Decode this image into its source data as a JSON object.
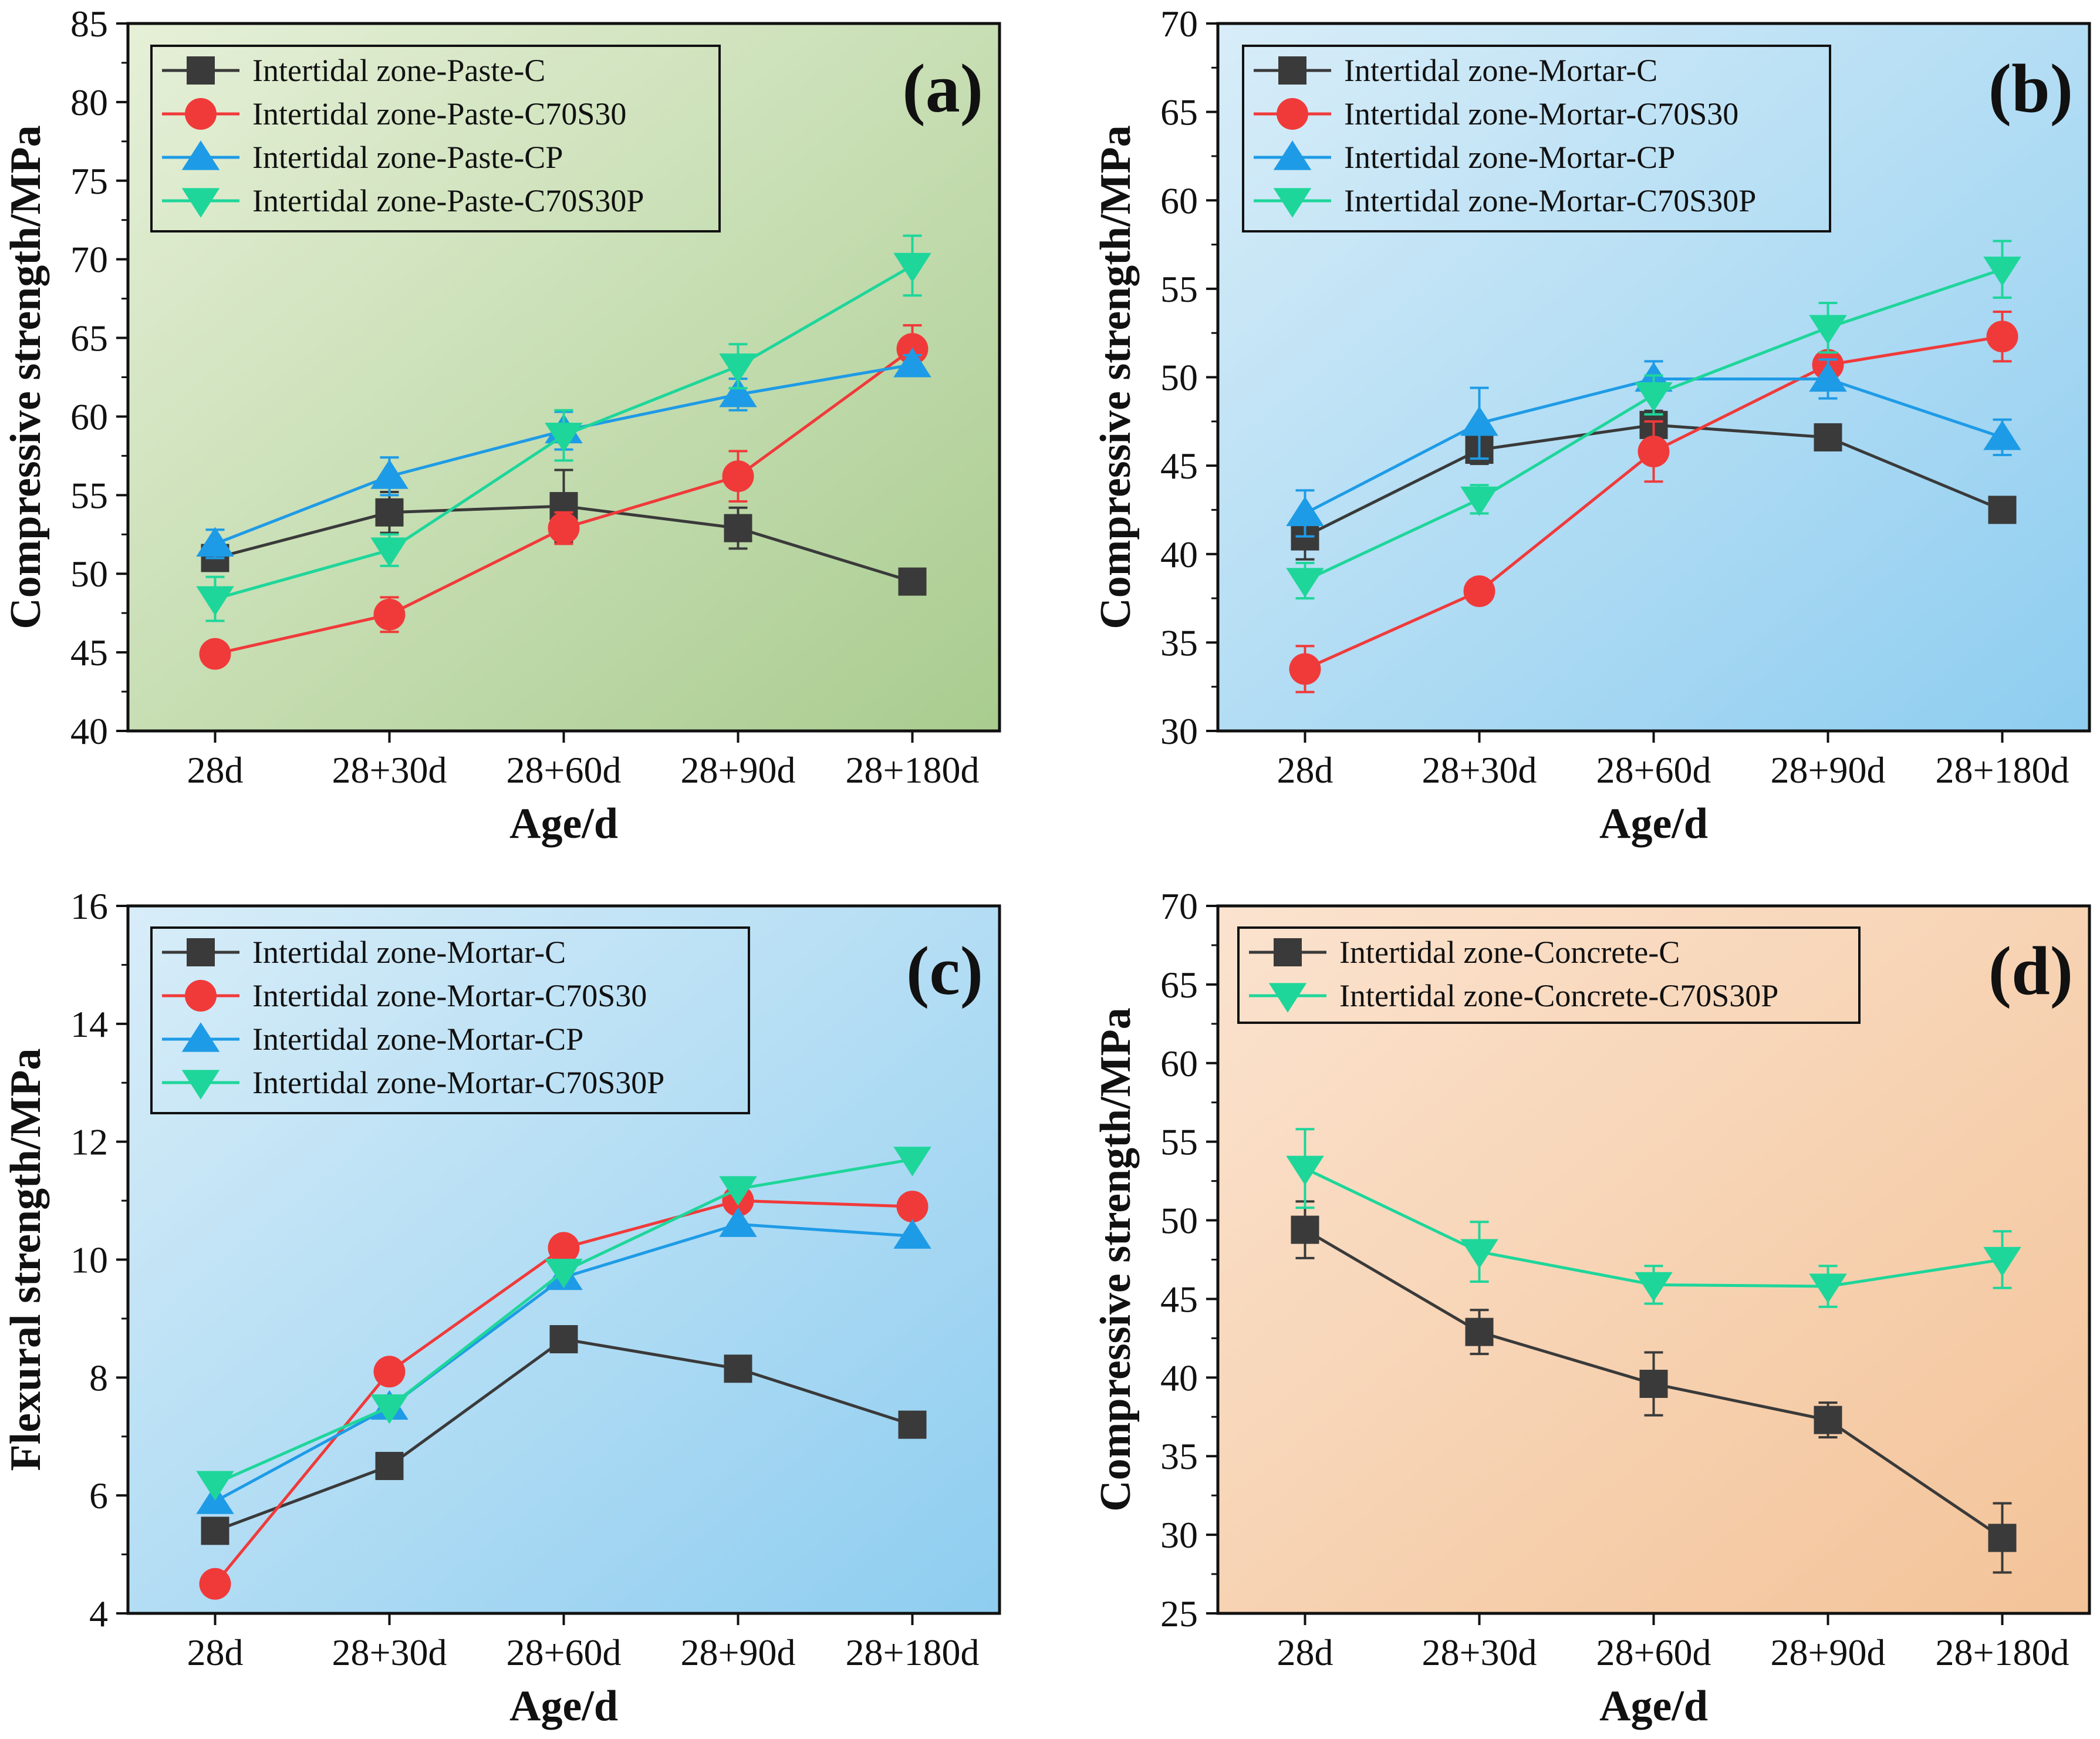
{
  "chart_data": [
    {
      "id": "a",
      "type": "line",
      "panel_label": "(a)",
      "xlabel": "Age/d",
      "ylabel": "Compressive strength/MPa",
      "categories": [
        "28d",
        "28+30d",
        "28+60d",
        "28+90d",
        "28+180d"
      ],
      "ylim": [
        40,
        85
      ],
      "yticks": [
        40,
        45,
        50,
        55,
        60,
        65,
        70,
        75,
        80,
        85
      ],
      "background": [
        "#e6f0d8",
        "#a9cc8f"
      ],
      "legend_position": "top-left",
      "series": [
        {
          "name": "Intertidal zone-Paste-C",
          "color": "#3a3a3a",
          "marker": "square",
          "values": [
            51.0,
            53.9,
            54.3,
            52.9,
            49.5
          ],
          "errors": [
            0.8,
            1.3,
            2.3,
            1.3,
            0.5
          ]
        },
        {
          "name": "Intertidal zone-Paste-C70S30",
          "color": "#f03a3a",
          "marker": "circle",
          "values": [
            44.9,
            47.4,
            52.9,
            56.2,
            64.3
          ],
          "errors": [
            0.4,
            1.1,
            1.0,
            1.6,
            1.5
          ]
        },
        {
          "name": "Intertidal zone-Paste-CP",
          "color": "#1e9be6",
          "marker": "triangle-up",
          "values": [
            51.9,
            56.2,
            59.1,
            61.4,
            63.3
          ],
          "errors": [
            0.9,
            1.2,
            1.2,
            1.0,
            0.6
          ]
        },
        {
          "name": "Intertidal zone-Paste-C70S30P",
          "color": "#1ed69a",
          "marker": "triangle-down",
          "values": [
            48.4,
            51.5,
            58.8,
            63.2,
            69.6
          ],
          "errors": [
            1.4,
            1.0,
            1.6,
            1.4,
            1.9
          ]
        }
      ]
    },
    {
      "id": "b",
      "type": "line",
      "panel_label": "(b)",
      "xlabel": "Age/d",
      "ylabel": "Compressive strength/MPa",
      "categories": [
        "28d",
        "28+30d",
        "28+60d",
        "28+90d",
        "28+180d"
      ],
      "ylim": [
        30,
        70
      ],
      "yticks": [
        30,
        35,
        40,
        45,
        50,
        55,
        60,
        65,
        70
      ],
      "background": [
        "#d8edf8",
        "#8ecdf0"
      ],
      "legend_position": "top-left",
      "series": [
        {
          "name": "Intertidal zone-Mortar-C",
          "color": "#3a3a3a",
          "marker": "square",
          "values": [
            41.0,
            45.9,
            47.3,
            46.6,
            42.5
          ],
          "errors": [
            1.3,
            0.8,
            0.8,
            0.5,
            0.7
          ]
        },
        {
          "name": "Intertidal zone-Mortar-C70S30",
          "color": "#f03a3a",
          "marker": "circle",
          "values": [
            33.5,
            37.9,
            45.8,
            50.7,
            52.3
          ],
          "errors": [
            1.3,
            0.5,
            1.7,
            0.5,
            1.4
          ]
        },
        {
          "name": "Intertidal zone-Mortar-CP",
          "color": "#1e9be6",
          "marker": "triangle-up",
          "values": [
            42.3,
            47.4,
            49.9,
            49.9,
            46.6
          ],
          "errors": [
            1.3,
            2.0,
            1.0,
            1.1,
            1.0
          ]
        },
        {
          "name": "Intertidal zone-Mortar-C70S30P",
          "color": "#1ed69a",
          "marker": "triangle-down",
          "values": [
            38.5,
            43.1,
            49.0,
            52.8,
            56.1
          ],
          "errors": [
            1.0,
            0.8,
            1.1,
            1.4,
            1.6
          ]
        }
      ]
    },
    {
      "id": "c",
      "type": "line",
      "panel_label": "(c)",
      "xlabel": "Age/d",
      "ylabel": "Flexural strength/MPa",
      "categories": [
        "28d",
        "28+30d",
        "28+60d",
        "28+90d",
        "28+180d"
      ],
      "ylim": [
        4,
        16
      ],
      "yticks": [
        4,
        6,
        8,
        10,
        12,
        14,
        16
      ],
      "background": [
        "#d8edf8",
        "#8ecdf0"
      ],
      "legend_position": "top-left",
      "series": [
        {
          "name": "Intertidal zone-Mortar-C",
          "color": "#3a3a3a",
          "marker": "square",
          "values": [
            5.4,
            6.5,
            8.65,
            8.15,
            7.2
          ]
        },
        {
          "name": "Intertidal zone-Mortar-C70S30",
          "color": "#f03a3a",
          "marker": "circle",
          "values": [
            4.5,
            8.1,
            10.2,
            11.0,
            10.9
          ]
        },
        {
          "name": "Intertidal zone-Mortar-CP",
          "color": "#1e9be6",
          "marker": "triangle-up",
          "values": [
            5.9,
            7.5,
            9.7,
            10.6,
            10.4
          ]
        },
        {
          "name": "Intertidal zone-Mortar-C70S30P",
          "color": "#1ed69a",
          "marker": "triangle-down",
          "values": [
            6.2,
            7.5,
            9.8,
            11.2,
            11.7
          ]
        }
      ]
    },
    {
      "id": "d",
      "type": "line",
      "panel_label": "(d)",
      "xlabel": "Age/d",
      "ylabel": "Compressive strength/MPa",
      "categories": [
        "28d",
        "28+30d",
        "28+60d",
        "28+90d",
        "28+180d"
      ],
      "ylim": [
        25,
        70
      ],
      "yticks": [
        25,
        30,
        35,
        40,
        45,
        50,
        55,
        60,
        65,
        70
      ],
      "background": [
        "#fbe3cf",
        "#f3c398"
      ],
      "legend_position": "top-left",
      "series": [
        {
          "name": "Intertidal zone-Concrete-C",
          "color": "#3a3a3a",
          "marker": "square",
          "values": [
            49.4,
            42.9,
            39.6,
            37.3,
            29.8
          ],
          "errors": [
            1.8,
            1.4,
            2.0,
            1.1,
            2.2
          ]
        },
        {
          "name": "Intertidal zone-Concrete-C70S30P",
          "color": "#1ed69a",
          "marker": "triangle-down",
          "values": [
            53.3,
            48.0,
            45.9,
            45.8,
            47.5
          ],
          "errors": [
            2.5,
            1.9,
            1.2,
            1.3,
            1.8
          ]
        }
      ]
    }
  ]
}
